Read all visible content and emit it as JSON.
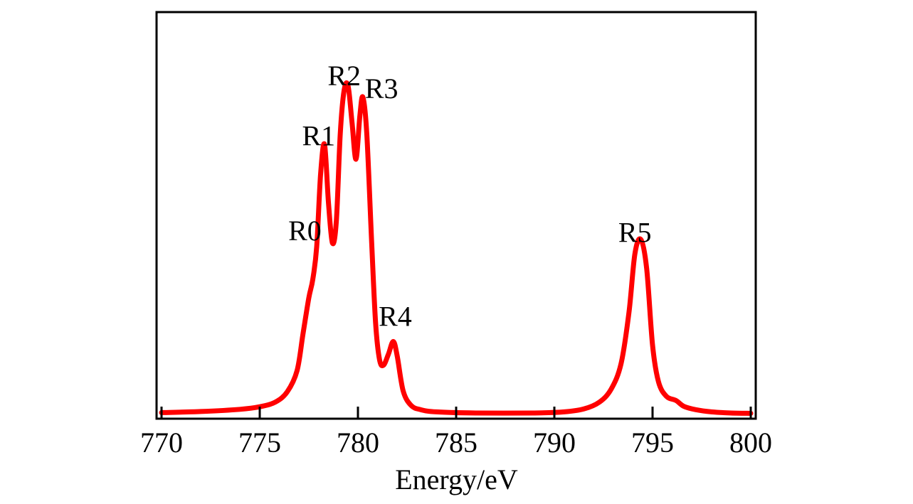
{
  "colors": {
    "line": "#ff0000",
    "axes": "#000000",
    "background": "#ffffff"
  },
  "chart_data": {
    "type": "line",
    "xlabel": "Energy/eV",
    "ylabel": "",
    "xlim": [
      770,
      800
    ],
    "ylim": [
      0,
      1.0
    ],
    "x_ticks": [
      770,
      775,
      780,
      785,
      790,
      795,
      800
    ],
    "x_tick_labels": [
      "770",
      "775",
      "780",
      "785",
      "790",
      "795",
      "800"
    ],
    "y_ticks_shown": false,
    "grid": false,
    "legend": "none",
    "series": [
      {
        "color": "#ff0000",
        "points": [
          [
            770.0,
            0.005
          ],
          [
            772.0,
            0.008
          ],
          [
            774.0,
            0.014
          ],
          [
            775.0,
            0.021
          ],
          [
            775.8,
            0.034
          ],
          [
            776.4,
            0.062
          ],
          [
            776.9,
            0.12
          ],
          [
            777.2,
            0.22
          ],
          [
            777.5,
            0.32
          ],
          [
            777.7,
            0.37
          ],
          [
            777.9,
            0.46
          ],
          [
            778.1,
            0.66
          ],
          [
            778.3,
            0.74
          ],
          [
            778.5,
            0.58
          ],
          [
            778.7,
            0.47
          ],
          [
            778.9,
            0.53
          ],
          [
            779.1,
            0.77
          ],
          [
            779.3,
            0.89
          ],
          [
            779.5,
            0.9
          ],
          [
            779.7,
            0.8
          ],
          [
            779.9,
            0.7
          ],
          [
            780.1,
            0.82
          ],
          [
            780.25,
            0.87
          ],
          [
            780.45,
            0.77
          ],
          [
            780.7,
            0.47
          ],
          [
            780.9,
            0.25
          ],
          [
            781.1,
            0.15
          ],
          [
            781.3,
            0.135
          ],
          [
            781.55,
            0.165
          ],
          [
            781.8,
            0.2
          ],
          [
            782.0,
            0.16
          ],
          [
            782.3,
            0.065
          ],
          [
            782.7,
            0.025
          ],
          [
            783.2,
            0.013
          ],
          [
            784.0,
            0.007
          ],
          [
            786.0,
            0.004
          ],
          [
            789.0,
            0.004
          ],
          [
            790.5,
            0.007
          ],
          [
            791.5,
            0.015
          ],
          [
            792.3,
            0.034
          ],
          [
            792.9,
            0.07
          ],
          [
            793.4,
            0.14
          ],
          [
            793.8,
            0.28
          ],
          [
            794.1,
            0.44
          ],
          [
            794.4,
            0.48
          ],
          [
            794.7,
            0.4
          ],
          [
            795.0,
            0.19
          ],
          [
            795.3,
            0.09
          ],
          [
            795.7,
            0.05
          ],
          [
            796.2,
            0.038
          ],
          [
            796.6,
            0.022
          ],
          [
            797.2,
            0.013
          ],
          [
            798.0,
            0.007
          ],
          [
            799.0,
            0.004
          ],
          [
            800.0,
            0.003
          ]
        ]
      }
    ],
    "annotations": [
      {
        "text": "R0",
        "x": 777.3,
        "y": 0.505
      },
      {
        "text": "R1",
        "x": 778.0,
        "y": 0.765
      },
      {
        "text": "R2",
        "x": 779.3,
        "y": 0.93
      },
      {
        "text": "R3",
        "x": 781.2,
        "y": 0.895
      },
      {
        "text": "R4",
        "x": 781.9,
        "y": 0.27
      },
      {
        "text": "R5",
        "x": 794.1,
        "y": 0.5
      }
    ]
  }
}
